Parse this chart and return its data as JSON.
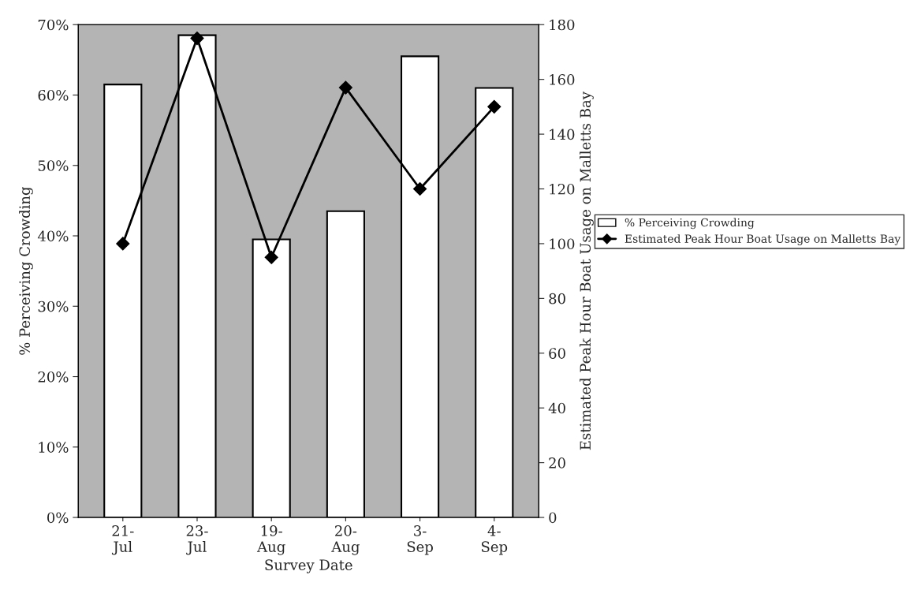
{
  "chart_data": {
    "type": "bar",
    "xlabel": "Survey Date",
    "ylabel": "% Perceiving Crowding",
    "y2label": "Estimated Peak Hour Boat Usage on Malletts Bay",
    "categories": [
      "21-\nJul",
      "23-\nJul",
      "19-\nAug",
      "20-\nAug",
      "3-\nSep",
      "4-\nSep"
    ],
    "series": [
      {
        "name": "% Perceiving Crowding",
        "color": "#ffffff",
        "values": [
          61.5,
          68.5,
          39.5,
          43.5,
          65.5,
          61
        ]
      },
      {
        "name": "Estimated Peak Hour Boat Usage on Malletts Bay",
        "type": "line",
        "axis": "y2",
        "color": "#000000",
        "marker": "diamond",
        "values": [
          100,
          175,
          95,
          157,
          120,
          150
        ]
      }
    ],
    "ylim": [
      0,
      70
    ],
    "yticks": [
      {
        "value": 0,
        "label": "0%"
      },
      {
        "value": 10,
        "label": "10%"
      },
      {
        "value": 20,
        "label": "20%"
      },
      {
        "value": 30,
        "label": "30%"
      },
      {
        "value": 40,
        "label": "40%"
      },
      {
        "value": 50,
        "label": "50%"
      },
      {
        "value": 60,
        "label": "60%"
      },
      {
        "value": 70,
        "label": "70%"
      }
    ],
    "y2lim": [
      0,
      180
    ],
    "y2ticks": [
      0,
      20,
      40,
      60,
      80,
      100,
      120,
      140,
      160,
      180
    ],
    "grid": false,
    "legend": "right"
  }
}
